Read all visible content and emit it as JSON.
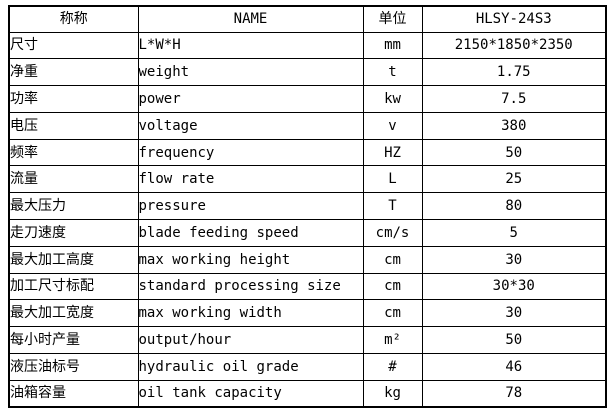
{
  "table": {
    "headers": {
      "name_cn": "称称",
      "name_en": "NAME",
      "unit": "单位",
      "model": "HLSY-24S3"
    },
    "rows": [
      {
        "cn": "尺寸",
        "en": "L*W*H",
        "unit": "mm",
        "value": "2150*1850*2350"
      },
      {
        "cn": "净重",
        "en": "weight",
        "unit": "t",
        "value": "1.75"
      },
      {
        "cn": "功率",
        "en": "power",
        "unit": "kw",
        "value": "7.5"
      },
      {
        "cn": "电压",
        "en": "voltage",
        "unit": "v",
        "value": "380"
      },
      {
        "cn": "频率",
        "en": "frequency",
        "unit": "HZ",
        "value": "50"
      },
      {
        "cn": "流量",
        "en": "flow rate",
        "unit": "L",
        "value": "25"
      },
      {
        "cn": "最大压力",
        "en": "pressure",
        "unit": "T",
        "value": "80"
      },
      {
        "cn": "走刀速度",
        "en": "blade feeding speed",
        "unit": "cm/s",
        "value": "5"
      },
      {
        "cn": "最大加工高度",
        "en": "max working height",
        "unit": "cm",
        "value": "30"
      },
      {
        "cn": "加工尺寸标配",
        "en": "standard processing size",
        "unit": "cm",
        "value": "30*30"
      },
      {
        "cn": "最大加工宽度",
        "en": "max working width",
        "unit": "cm",
        "value": "30"
      },
      {
        "cn": "每小时产量",
        "en": "output/hour",
        "unit": "m²",
        "value": "50"
      },
      {
        "cn": "液压油标号",
        "en": "hydraulic oil grade",
        "unit": "#",
        "value": "46"
      },
      {
        "cn": "油箱容量",
        "en": "oil tank capacity",
        "unit": "kg",
        "value": "78"
      }
    ]
  },
  "colors": {
    "border": "#000000",
    "text": "#000000",
    "background": "#ffffff"
  }
}
